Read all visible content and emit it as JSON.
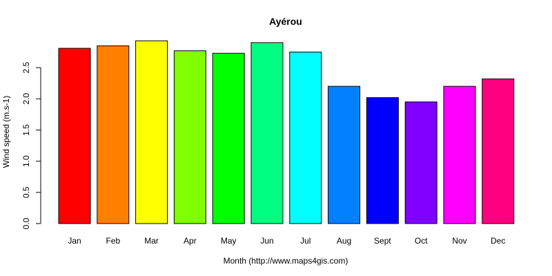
{
  "chart_data": {
    "type": "bar",
    "title": "Ayérou",
    "xlabel": "Month (http://www.maps4gis.com)",
    "ylabel": "Wind speed (m.s-1)",
    "categories": [
      "Jan",
      "Feb",
      "Mar",
      "Apr",
      "May",
      "Jun",
      "Jul",
      "Aug",
      "Sept",
      "Oct",
      "Nov",
      "Dec"
    ],
    "values": [
      2.81,
      2.85,
      2.93,
      2.77,
      2.73,
      2.9,
      2.75,
      2.2,
      2.02,
      1.95,
      2.2,
      2.32
    ],
    "colors": [
      "#ff0000",
      "#ff8000",
      "#ffff00",
      "#80ff00",
      "#00ff00",
      "#00ff80",
      "#00ffff",
      "#0080ff",
      "#0000ff",
      "#8000ff",
      "#ff00ff",
      "#ff0080"
    ],
    "ylim": [
      0,
      2.93
    ],
    "yticks": [
      0.0,
      0.5,
      1.0,
      1.5,
      2.0,
      2.5
    ],
    "ytick_labels": [
      "0.0",
      "0.5",
      "1.0",
      "1.5",
      "2.0",
      "2.5"
    ],
    "grid": false,
    "legend": "none"
  }
}
